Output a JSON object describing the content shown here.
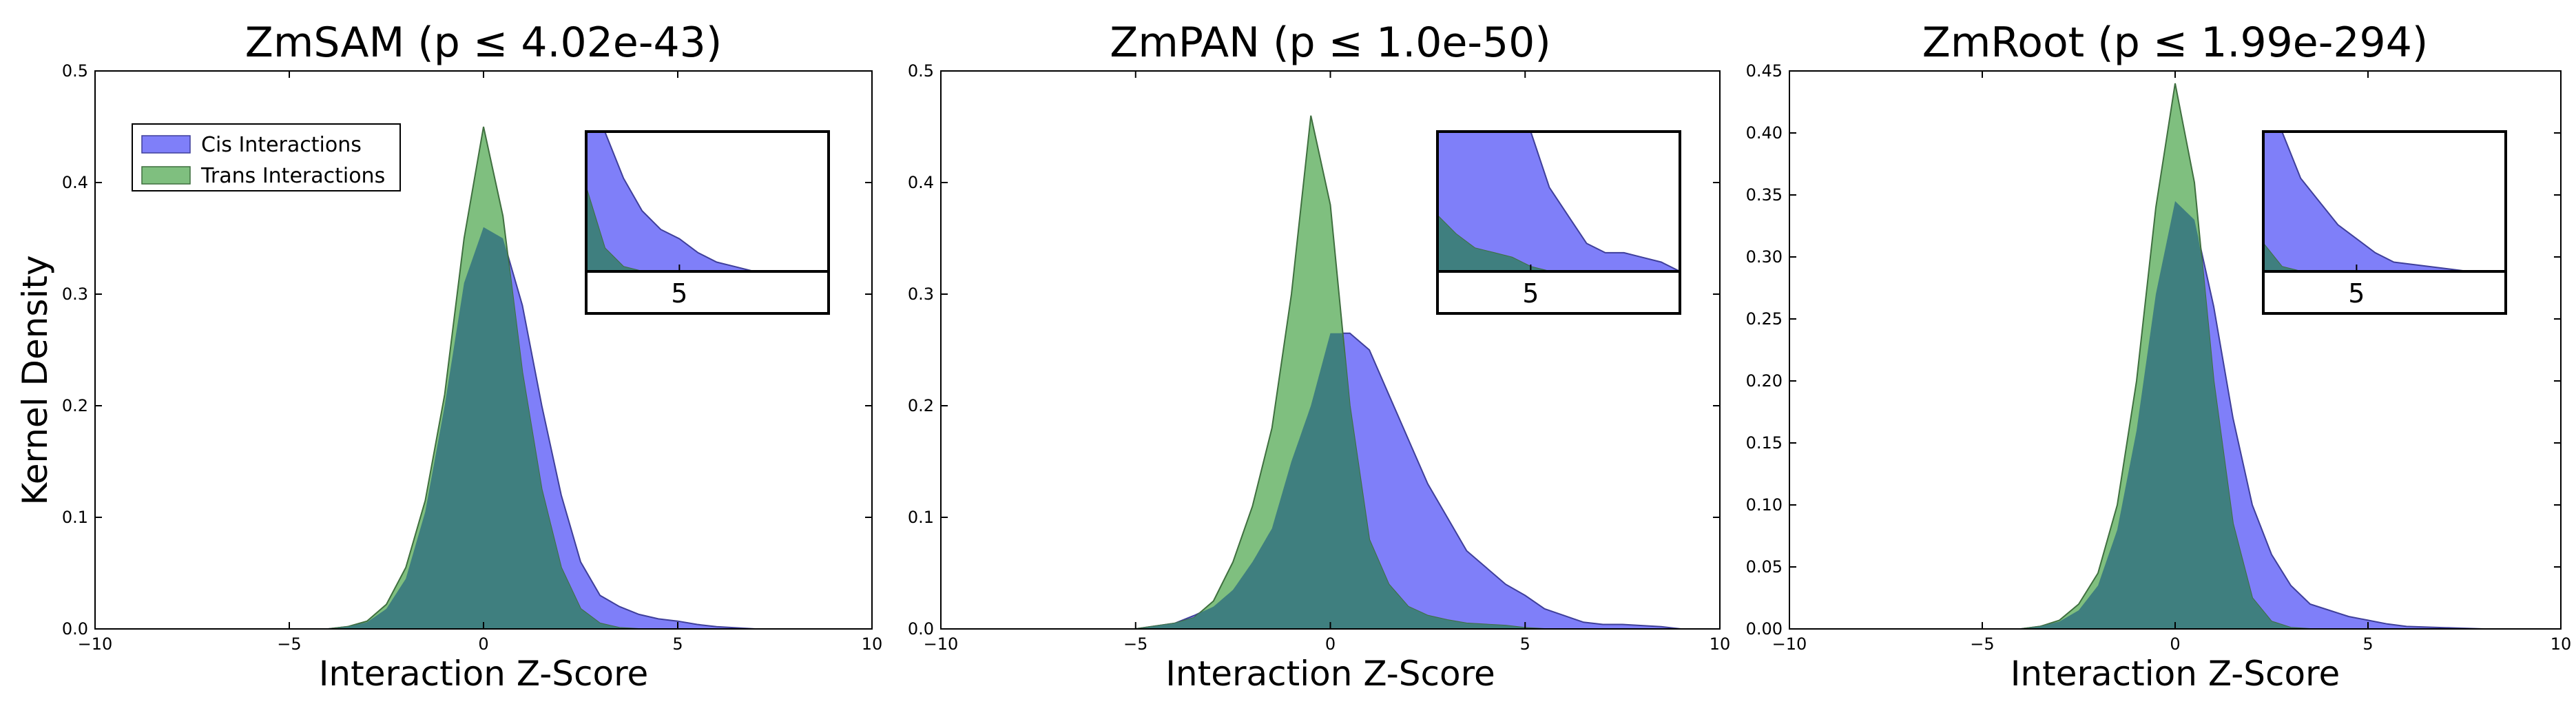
{
  "figure": {
    "ylabel": "Kernel Density",
    "legend": {
      "placement": "upper-left",
      "entries": [
        {
          "label": "Cis Interactions",
          "color": "#7f7ff9"
        },
        {
          "label": "Trans Interactions",
          "color": "#7fbf7f"
        }
      ]
    },
    "colors": {
      "cis_fill": "#7f7ff9",
      "cis_edge": "#3f3f9a",
      "trans_fill": "#7fbf7f",
      "trans_edge": "#3f6f3f",
      "overlap": "#3f7f7f"
    }
  },
  "chart_data": [
    {
      "type": "area",
      "title": "ZmSAM (p ≤ 4.02e-43)",
      "xlabel": "Interaction Z-Score",
      "ylabel": "Kernel Density",
      "xlim": [
        -10,
        10
      ],
      "ylim": [
        0,
        0.5
      ],
      "xticks": [
        "−10",
        "−5",
        "0",
        "5",
        "10"
      ],
      "yticks": [
        "0.0",
        "0.1",
        "0.2",
        "0.3",
        "0.4",
        "0.5"
      ],
      "series": [
        {
          "name": "Cis Interactions",
          "x": [
            -4.0,
            -3.5,
            -3.0,
            -2.5,
            -2.0,
            -1.5,
            -1.0,
            -0.5,
            0.0,
            0.5,
            1.0,
            1.5,
            2.0,
            2.5,
            3.0,
            3.5,
            4.0,
            4.5,
            5.0,
            5.5,
            6.0,
            6.5,
            7.0
          ],
          "y": [
            0.0,
            0.002,
            0.006,
            0.018,
            0.045,
            0.105,
            0.2,
            0.31,
            0.36,
            0.35,
            0.29,
            0.2,
            0.12,
            0.06,
            0.03,
            0.02,
            0.013,
            0.009,
            0.007,
            0.004,
            0.002,
            0.001,
            0.0
          ]
        },
        {
          "name": "Trans Interactions",
          "x": [
            -4.0,
            -3.5,
            -3.0,
            -2.5,
            -2.0,
            -1.5,
            -1.0,
            -0.5,
            0.0,
            0.5,
            1.0,
            1.5,
            2.0,
            2.5,
            3.0,
            3.5,
            4.0
          ],
          "y": [
            0.0,
            0.002,
            0.007,
            0.022,
            0.055,
            0.115,
            0.21,
            0.35,
            0.45,
            0.37,
            0.23,
            0.125,
            0.055,
            0.018,
            0.005,
            0.001,
            0.0
          ]
        }
      ],
      "inset": {
        "xtick": "5"
      }
    },
    {
      "type": "area",
      "title": "ZmPAN (p ≤ 1.0e-50)",
      "xlabel": "Interaction Z-Score",
      "ylabel": "",
      "xlim": [
        -10,
        10
      ],
      "ylim": [
        0,
        0.5
      ],
      "xticks": [
        "−10",
        "−5",
        "0",
        "5",
        "10"
      ],
      "yticks": [
        "0.0",
        "0.1",
        "0.2",
        "0.3",
        "0.4",
        "0.5"
      ],
      "series": [
        {
          "name": "Cis Interactions",
          "x": [
            -5.0,
            -4.0,
            -3.5,
            -3.0,
            -2.5,
            -2.0,
            -1.5,
            -1.0,
            -0.5,
            0.0,
            0.5,
            1.0,
            1.5,
            2.0,
            2.5,
            3.0,
            3.5,
            4.0,
            4.5,
            5.0,
            5.5,
            6.0,
            6.5,
            7.0,
            7.5,
            8.0,
            8.5,
            9.0
          ],
          "y": [
            0.0,
            0.005,
            0.012,
            0.02,
            0.035,
            0.06,
            0.09,
            0.15,
            0.2,
            0.265,
            0.265,
            0.25,
            0.21,
            0.17,
            0.13,
            0.1,
            0.07,
            0.055,
            0.04,
            0.03,
            0.018,
            0.012,
            0.006,
            0.004,
            0.004,
            0.003,
            0.002,
            0.0
          ]
        },
        {
          "name": "Trans Interactions",
          "x": [
            -5.0,
            -4.0,
            -3.5,
            -3.0,
            -2.5,
            -2.0,
            -1.5,
            -1.0,
            -0.5,
            0.0,
            0.5,
            1.0,
            1.5,
            2.0,
            2.5,
            3.0,
            3.5,
            4.0,
            4.5,
            5.0,
            5.5
          ],
          "y": [
            0.0,
            0.005,
            0.01,
            0.025,
            0.06,
            0.11,
            0.18,
            0.3,
            0.46,
            0.38,
            0.2,
            0.08,
            0.04,
            0.02,
            0.012,
            0.008,
            0.005,
            0.004,
            0.003,
            0.001,
            0.0
          ]
        }
      ],
      "inset": {
        "xtick": "5"
      }
    },
    {
      "type": "area",
      "title": "ZmRoot (p ≤ 1.99e-294)",
      "xlabel": "Interaction Z-Score",
      "ylabel": "",
      "xlim": [
        -10,
        10
      ],
      "ylim": [
        0,
        0.45
      ],
      "xticks": [
        "−10",
        "−5",
        "0",
        "5",
        "10"
      ],
      "yticks": [
        "0.00",
        "0.05",
        "0.10",
        "0.15",
        "0.20",
        "0.25",
        "0.30",
        "0.35",
        "0.40",
        "0.45"
      ],
      "series": [
        {
          "name": "Cis Interactions",
          "x": [
            -4.0,
            -3.5,
            -3.0,
            -2.5,
            -2.0,
            -1.5,
            -1.0,
            -0.5,
            0.0,
            0.5,
            1.0,
            1.5,
            2.0,
            2.5,
            3.0,
            3.5,
            4.0,
            4.5,
            5.0,
            5.5,
            6.0,
            7.0,
            8.0
          ],
          "y": [
            0.0,
            0.002,
            0.006,
            0.015,
            0.035,
            0.08,
            0.16,
            0.27,
            0.345,
            0.33,
            0.26,
            0.17,
            0.1,
            0.06,
            0.035,
            0.02,
            0.015,
            0.01,
            0.007,
            0.004,
            0.002,
            0.001,
            0.0
          ]
        },
        {
          "name": "Trans Interactions",
          "x": [
            -4.0,
            -3.5,
            -3.0,
            -2.5,
            -2.0,
            -1.5,
            -1.0,
            -0.5,
            0.0,
            0.5,
            1.0,
            1.5,
            2.0,
            2.5,
            3.0,
            3.5
          ],
          "y": [
            0.0,
            0.002,
            0.007,
            0.02,
            0.045,
            0.1,
            0.2,
            0.34,
            0.44,
            0.36,
            0.2,
            0.085,
            0.025,
            0.006,
            0.001,
            0.0
          ]
        }
      ],
      "inset": {
        "xtick": "5"
      }
    }
  ]
}
